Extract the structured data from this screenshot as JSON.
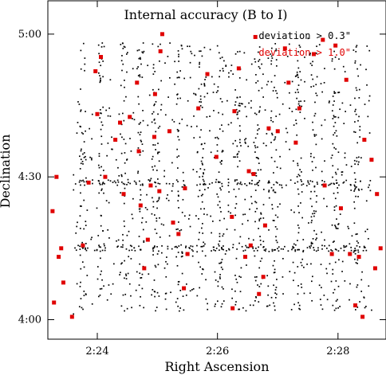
{
  "chart_data": {
    "type": "scatter",
    "title": "Internal accuracy (B to I)",
    "xlabel": "Right Ascension",
    "ylabel": "Declination",
    "xlim": [
      2.3863,
      2.48
    ],
    "ylim": [
      5.1167,
      3.9317
    ],
    "x_ticks": [
      {
        "value": 2.4,
        "label": "2:24"
      },
      {
        "value": 2.4333,
        "label": "2:26"
      },
      {
        "value": 2.4667,
        "label": "2:28"
      }
    ],
    "y_ticks": [
      {
        "value": 4.0,
        "label": "4:00"
      },
      {
        "value": 4.5,
        "label": "4:30"
      },
      {
        "value": 5.0,
        "label": "5:00"
      }
    ],
    "legend": "top-right",
    "grid": false,
    "colors": {
      "low": "#000000",
      "high": "#e00000"
    },
    "series": [
      {
        "name": "deviation > 0.3\"",
        "color": "#000000",
        "marker": "small-dot",
        "description_points": "dense field of stars",
        "x": [
          2.3934,
          2.3986,
          2.4038,
          2.409,
          2.4142,
          2.4194,
          2.4246,
          2.4298,
          2.435,
          2.4402,
          2.4454,
          2.4506,
          2.4558,
          2.461,
          2.4662,
          2.4714,
          2.396,
          2.4012,
          2.4064,
          2.4116,
          2.4168,
          2.422,
          2.4272,
          2.4324,
          2.4376,
          2.4428,
          2.448,
          2.4532,
          2.4584,
          2.4636,
          2.4688,
          2.3947,
          2.3999,
          2.4051,
          2.4103,
          2.4155,
          2.4207,
          2.4259,
          2.4311,
          2.4363,
          2.4415,
          2.4467,
          2.4519,
          2.4571,
          2.4623,
          2.4675,
          2.4727
        ],
        "y": [
          4.02,
          4.055,
          4.09,
          4.125,
          4.16,
          4.195,
          4.23,
          4.265,
          4.3,
          4.335,
          4.37,
          4.405,
          4.44,
          4.475,
          4.51,
          4.545,
          4.58,
          4.615,
          4.65,
          4.685,
          4.72,
          4.755,
          4.79,
          4.825,
          4.86,
          4.895,
          4.93,
          4.965,
          4.985,
          4.25,
          4.255,
          4.26,
          4.245,
          4.48,
          4.485,
          4.252,
          4.248,
          4.258,
          4.475,
          4.47,
          4.253,
          4.247,
          4.256,
          4.242,
          4.26,
          4.25,
          4.255
        ]
      },
      {
        "name": "deviation > 1.0\"",
        "color": "#e00000",
        "marker": "square",
        "x": [
          2.388,
          2.3893,
          2.3876,
          2.3887,
          2.39,
          2.3906,
          2.393,
          2.396,
          2.3976,
          2.4022,
          2.4,
          2.3995,
          2.401,
          2.405,
          2.4073,
          2.4063,
          2.409,
          2.4115,
          2.411,
          2.412,
          2.413,
          2.414,
          2.4148,
          2.4158,
          2.416,
          2.4172,
          2.4175,
          2.418,
          2.42,
          2.421,
          2.4225,
          2.424,
          2.4243,
          2.425,
          2.428,
          2.4305,
          2.433,
          2.4375,
          2.4373,
          2.438,
          2.4392,
          2.441,
          2.4425,
          2.4433,
          2.4438,
          2.4448,
          2.446,
          2.4475,
          2.45,
          2.453,
          2.456,
          2.46,
          2.463,
          2.466,
          2.47,
          2.4715,
          2.4735,
          2.477,
          2.4785,
          2.4775,
          2.476,
          2.474,
          2.4725,
          2.469,
          2.4675,
          2.465,
          2.4625,
          2.455,
          2.442,
          2.4465,
          2.452
        ],
        "y": [
          4.06,
          4.22,
          4.38,
          4.5,
          4.25,
          4.13,
          4.01,
          4.26,
          4.48,
          4.5,
          4.72,
          4.87,
          4.92,
          4.63,
          4.44,
          4.69,
          4.71,
          4.59,
          4.83,
          4.4,
          4.18,
          4.28,
          4.47,
          4.64,
          4.79,
          4.45,
          4.94,
          5.0,
          4.66,
          4.34,
          4.3,
          4.11,
          4.46,
          4.23,
          4.74,
          4.86,
          4.57,
          4.04,
          4.36,
          4.73,
          4.88,
          4.22,
          4.26,
          4.51,
          4.99,
          4.09,
          4.15,
          4.67,
          4.66,
          4.83,
          4.74,
          4.93,
          4.47,
          4.96,
          4.23,
          4.05,
          4.01,
          4.18,
          4.25,
          4.44,
          4.56,
          4.63,
          4.22,
          4.84,
          4.39,
          4.23,
          4.98,
          4.62,
          4.52,
          4.33,
          4.95
        ]
      }
    ]
  }
}
